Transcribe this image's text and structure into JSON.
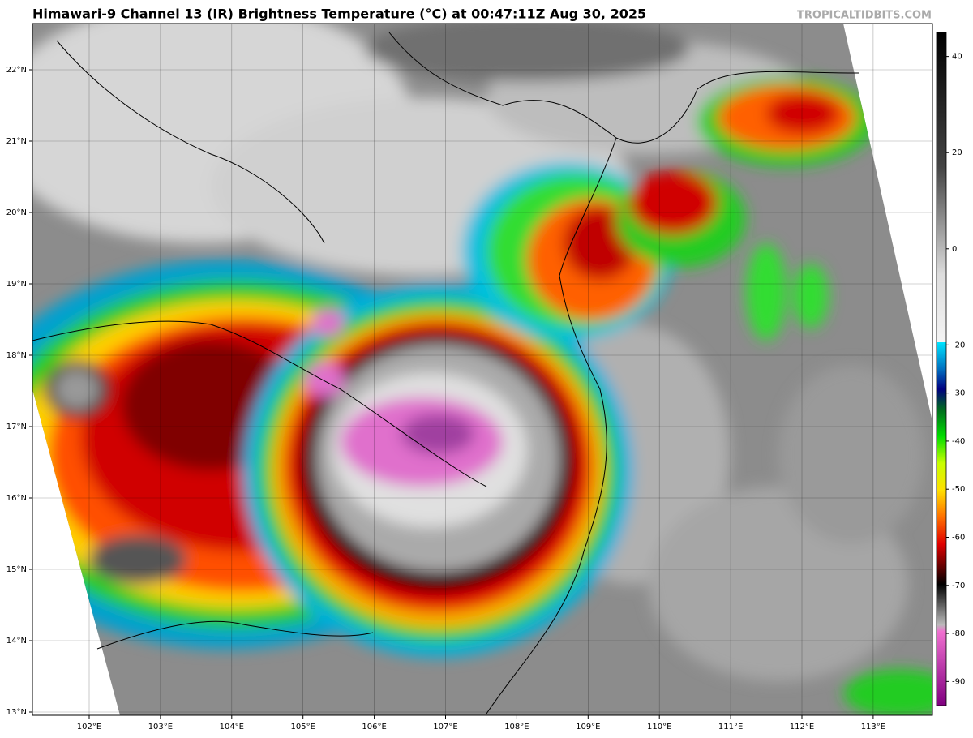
{
  "header": {
    "title": "Himawari-9 Channel 13 (IR) Brightness Temperature (°C) at 00:47:11Z Aug 30, 2025",
    "source": "TROPICALTIDBITS.COM"
  },
  "map": {
    "lat_labels": [
      "22°N",
      "21°N",
      "20°N",
      "19°N",
      "18°N",
      "17°N",
      "16°N",
      "15°N",
      "14°N",
      "13°N"
    ],
    "lon_labels": [
      "102°E",
      "103°E",
      "104°E",
      "105°E",
      "106°E",
      "107°E",
      "108°E",
      "109°E",
      "110°E",
      "111°E",
      "112°E",
      "113°E"
    ]
  },
  "colorbar": {
    "lim": [
      -95,
      45
    ],
    "ticks": [
      40,
      20,
      0,
      -20,
      -30,
      -40,
      -50,
      -60,
      -70,
      -80,
      -90
    ]
  }
}
